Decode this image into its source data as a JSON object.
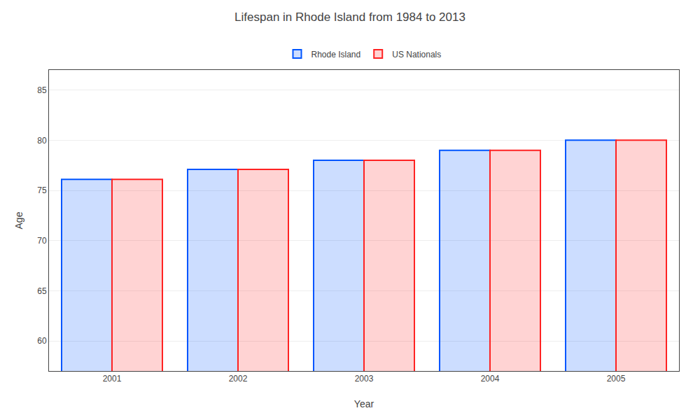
{
  "chart_data": {
    "type": "bar",
    "title": "Lifespan in Rhode Island from 1984 to 2013",
    "x_label": "Year",
    "y_label": "Age",
    "categories": [
      "2001",
      "2002",
      "2003",
      "2004",
      "2005"
    ],
    "series": [
      {
        "name": "Rhode Island",
        "color": "#0055ff",
        "values": [
          76.1,
          77.1,
          78.0,
          79.0,
          80.0
        ]
      },
      {
        "name": "US Nationals",
        "color": "#ff2222",
        "values": [
          76.1,
          77.1,
          78.0,
          79.0,
          80.0
        ]
      }
    ],
    "ylim": [
      57,
      87
    ],
    "yticks": [
      60,
      65,
      70,
      75,
      80,
      85
    ],
    "grid": true,
    "legend": "top"
  }
}
